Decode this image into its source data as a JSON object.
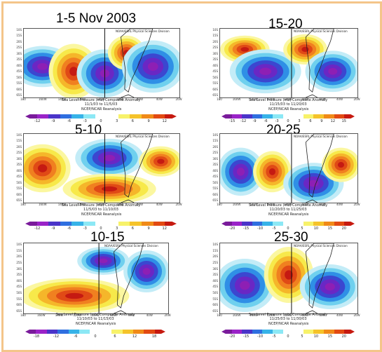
{
  "panels": [
    {
      "title": "1-5 Nov 2003",
      "caption_line1": "Sea Level Pressure (mb) Composite Anomaly",
      "caption_line2": "11/1/03  to  11/5/03",
      "credit": "NOAA/ESRL Physical Sciences Division",
      "reanalysis": "NCEP/NCAR Reanalysis",
      "colorbar_ticks": [
        "-12",
        "-9",
        "-6",
        "-3",
        "0",
        "3",
        "6",
        "9",
        "12"
      ]
    },
    {
      "title": "15-20",
      "caption_line1": "Sea Level Pressure (mb) Composite Anomaly",
      "caption_line2": "11/15/03  to  11/20/03",
      "credit": "NOAA/ESRL Physical Sciences Division",
      "reanalysis": "NCEP/NCAR Reanalysis",
      "colorbar_ticks": [
        "-15",
        "-12",
        "-9",
        "-6",
        "-3",
        "0",
        "3",
        "6",
        "9",
        "12",
        "15"
      ]
    },
    {
      "title": "5-10",
      "caption_line1": "Sea Level Pressure (mb) Composite Anomaly",
      "caption_line2": "11/5/03  to  11/10/03",
      "credit": "NOAA/ESRL Physical Sciences Division",
      "reanalysis": "NCEP/NCAR Reanalysis",
      "colorbar_ticks": [
        "-12",
        "-9",
        "-6",
        "-3",
        "0",
        "3",
        "6",
        "9",
        "12"
      ]
    },
    {
      "title": "20-25",
      "caption_line1": "Sea Level Pressure (mb) Composite Anomaly",
      "caption_line2": "11/20/03  to  11/25/03",
      "credit": "NOAA/ESRL Physical Sciences Division",
      "reanalysis": "NCEP/NCAR Reanalysis",
      "colorbar_ticks": [
        "-20",
        "-15",
        "-10",
        "-5",
        "0",
        "5",
        "10",
        "15",
        "20"
      ]
    },
    {
      "title": "10-15",
      "caption_line1": "Sea Level Pressure (mb) Composite Anomaly",
      "caption_line2": "11/10/03  to  11/15/03",
      "credit": "NOAA/ESRL Physical Sciences Division",
      "reanalysis": "NCEP/NCAR Reanalysis",
      "colorbar_ticks": [
        "-18",
        "-12",
        "-6",
        "0",
        "6",
        "12",
        "18"
      ]
    },
    {
      "title": "25-30",
      "caption_line1": "Sea Level Pressure (mb) Composite Anomaly",
      "caption_line2": "11/25/03  to  11/30/03",
      "credit": "NOAA/ESRL Physical Sciences Division",
      "reanalysis": "NCEP/NCAR Reanalysis",
      "colorbar_ticks": [
        "-20",
        "-15",
        "-10",
        "-5",
        "0",
        "5",
        "10",
        "15",
        "20"
      ]
    }
  ],
  "lat_labels": [
    "10S",
    "15S",
    "20S",
    "25S",
    "30S",
    "35S",
    "40S",
    "45S",
    "50S",
    "55S",
    "60S",
    "65S"
  ],
  "lon_labels": [
    "180",
    "160W",
    "140W",
    "120W",
    "100W",
    "80W",
    "60W",
    "40W",
    "20W"
  ],
  "colors": {
    "frame": "#f4c58a",
    "colorbar": [
      "#7a1b9b",
      "#9a23c8",
      "#4a34c9",
      "#2f6fe0",
      "#37b3e8",
      "#8ce8f5",
      "#ffffff",
      "#ffffff",
      "#f7f26a",
      "#f5c32a",
      "#f08a18",
      "#e24a12",
      "#c61a10"
    ]
  }
}
